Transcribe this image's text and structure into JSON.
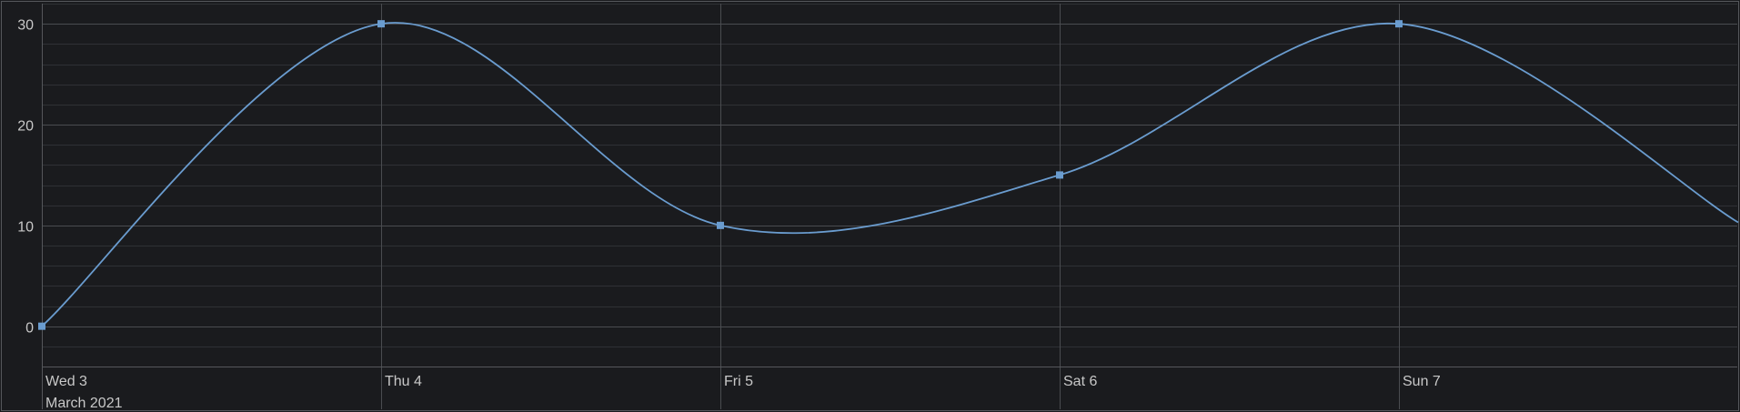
{
  "chart_data": {
    "type": "line",
    "curve": "smooth",
    "x": [
      "2021-03-03",
      "2021-03-04",
      "2021-03-05",
      "2021-03-06",
      "2021-03-07",
      "2021-03-08"
    ],
    "series": [
      {
        "values": [
          0,
          30,
          10,
          15,
          30,
          10.3
        ],
        "color": "#6a9ccf",
        "markers": "square"
      }
    ],
    "x_tick_labels": [
      "Wed 3",
      "Thu 4",
      "Fri 5",
      "Sat 6",
      "Sun 7"
    ],
    "x_period_label": "March 2021",
    "y_ticks": [
      0,
      10,
      20,
      30
    ],
    "ylim": [
      -4,
      32
    ],
    "y_minor_step": 2,
    "grid": true,
    "colors": {
      "background": "#1a1b1e",
      "grid_major": "#4a4c50",
      "grid_minor": "#2f3135",
      "axis_text": "#c8c8c8",
      "frame": "#55575b"
    }
  }
}
